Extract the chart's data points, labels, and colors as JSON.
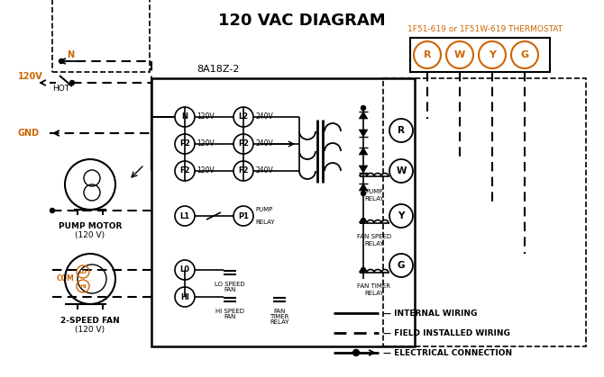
{
  "title": "120 VAC DIAGRAM",
  "bg_color": "#ffffff",
  "black_color": "#000000",
  "orange_color": "#cc6600",
  "thermostat_label": "1F51-619 or 1F51W-619 THERMOSTAT",
  "controller_label": "8A18Z-2",
  "fig_w": 6.7,
  "fig_h": 4.19,
  "dpi": 100
}
